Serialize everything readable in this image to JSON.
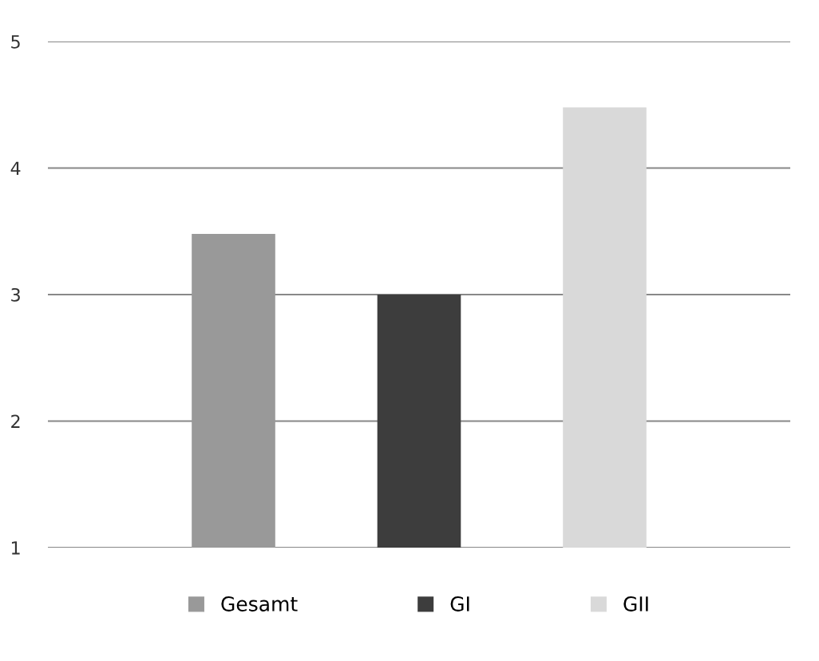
{
  "chart_data": {
    "type": "bar",
    "categories": [
      null
    ],
    "series": [
      {
        "name": "Gesamt",
        "color": "#999999",
        "values": [
          3.48
        ]
      },
      {
        "name": "GI",
        "color": "#3d3d3d",
        "values": [
          3.0
        ]
      },
      {
        "name": "GII",
        "color": "#d9d9d9",
        "values": [
          4.48
        ]
      }
    ],
    "ylim": [
      1,
      5
    ],
    "yticks": [
      1,
      2,
      3,
      4,
      5
    ],
    "grid": "y",
    "legend": "bottom"
  }
}
